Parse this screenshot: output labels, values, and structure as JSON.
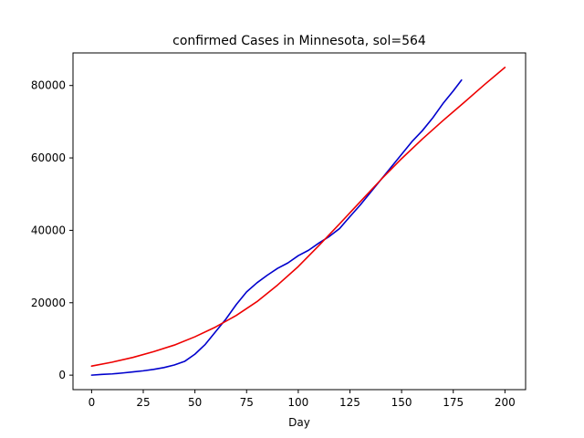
{
  "chart_data": {
    "type": "line",
    "title": "confirmed Cases in Minnesota, sol=564",
    "xlabel": "Day",
    "ylabel": "",
    "xlim": [
      -9,
      210
    ],
    "ylim": [
      -4000,
      89000
    ],
    "xticks": [
      0,
      25,
      50,
      75,
      100,
      125,
      150,
      175,
      200
    ],
    "yticks": [
      0,
      20000,
      40000,
      60000,
      80000
    ],
    "xtick_labels": [
      "0",
      "25",
      "50",
      "75",
      "100",
      "125",
      "150",
      "175",
      "200"
    ],
    "ytick_labels": [
      "0",
      "20000",
      "40000",
      "60000",
      "80000"
    ],
    "grid": false,
    "series": [
      {
        "color": "#0000cd",
        "x": [
          0,
          5,
          10,
          15,
          20,
          25,
          30,
          35,
          40,
          45,
          50,
          55,
          60,
          65,
          70,
          75,
          80,
          85,
          90,
          95,
          100,
          105,
          110,
          115,
          120,
          125,
          130,
          135,
          140,
          145,
          150,
          155,
          160,
          165,
          170,
          175,
          179
        ],
        "y": [
          0,
          200,
          350,
          600,
          900,
          1200,
          1600,
          2100,
          2800,
          3800,
          5800,
          8500,
          12000,
          15500,
          19500,
          23000,
          25500,
          27600,
          29500,
          31000,
          33000,
          34500,
          36500,
          38300,
          40500,
          43800,
          47000,
          50500,
          54000,
          57500,
          61000,
          64500,
          67500,
          71000,
          75000,
          78500,
          81500
        ]
      },
      {
        "color": "#ee0000",
        "x": [
          0,
          10,
          20,
          30,
          40,
          50,
          60,
          70,
          80,
          90,
          100,
          110,
          120,
          130,
          140,
          150,
          160,
          170,
          180,
          190,
          200
        ],
        "y": [
          2500,
          3600,
          4900,
          6500,
          8300,
          10600,
          13300,
          16500,
          20300,
          24900,
          30000,
          35800,
          41800,
          47900,
          54000,
          59800,
          65200,
          70300,
          75200,
          80200,
          85000
        ]
      }
    ]
  }
}
